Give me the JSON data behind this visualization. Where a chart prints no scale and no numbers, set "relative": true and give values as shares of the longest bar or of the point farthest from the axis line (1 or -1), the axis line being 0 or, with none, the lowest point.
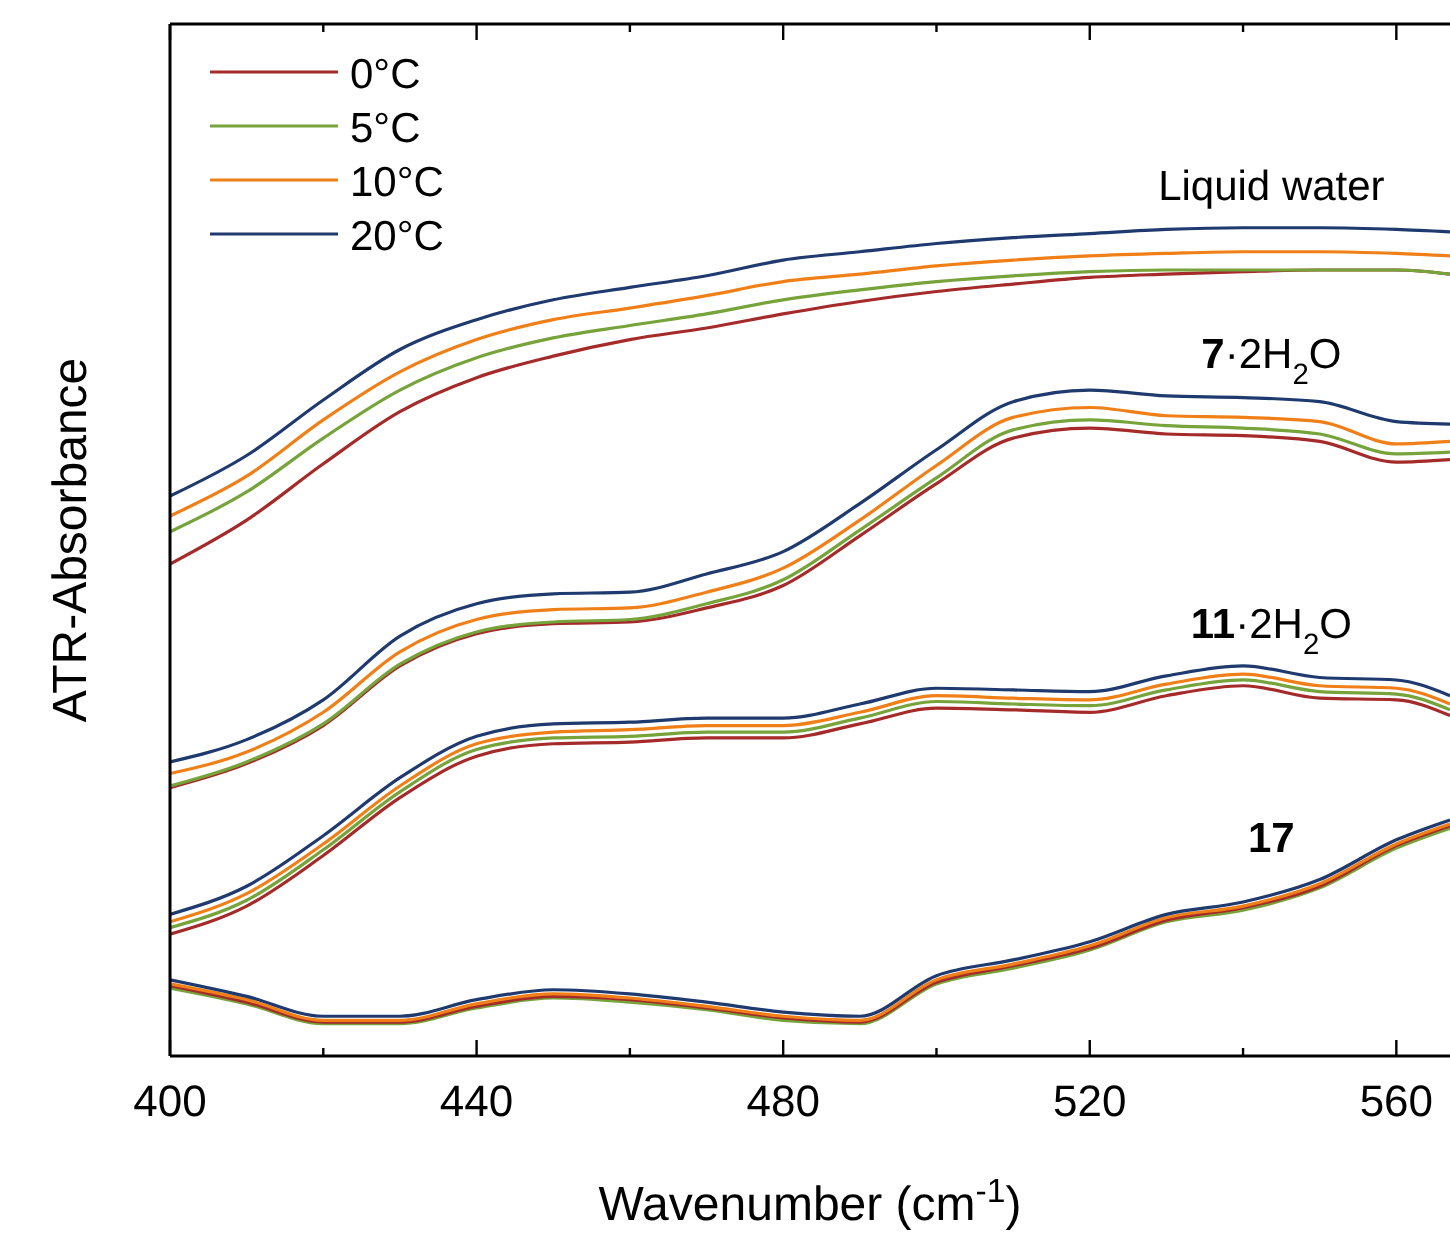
{
  "chart_data": {
    "type": "line",
    "relative": true,
    "xlabel": "Wavenumber (cm$^{-1}$)",
    "ylabel": "ATR-Absorbance",
    "xlim": [
      400,
      567
    ],
    "xticks": [
      400,
      {
        "value": 420,
        "label": null
      },
      440,
      {
        "value": 460,
        "label": null
      },
      480,
      {
        "value": 500,
        "label": null
      },
      520,
      {
        "value": 540,
        "label": null
      },
      560
    ],
    "legend": "top left",
    "x": [
      400,
      410,
      420,
      430,
      440,
      450,
      460,
      470,
      480,
      490,
      500,
      510,
      520,
      530,
      540,
      550,
      560,
      567
    ],
    "annotations": [
      "Liquid water",
      "7·2H$_{2}$O",
      "11·2H$_{2}$O",
      "17"
    ],
    "series": [
      {
        "name": "0°C",
        "color": "#a52a2a",
        "values": [
          0.594,
          0.647,
          0.715,
          0.778,
          0.819,
          0.845,
          0.865,
          0.879,
          0.896,
          0.911,
          0.923,
          0.932,
          0.94,
          0.944,
          0.947,
          0.949,
          0.949,
          0.944
        ]
      },
      {
        "name": "5°C",
        "color": "#77a33b",
        "values": [
          0.633,
          0.681,
          0.746,
          0.804,
          0.843,
          0.867,
          0.882,
          0.896,
          0.913,
          0.925,
          0.935,
          0.942,
          0.947,
          0.949,
          0.949,
          0.949,
          0.949,
          0.944
        ]
      },
      {
        "name": "10°C",
        "color": "#f07f17",
        "values": [
          0.652,
          0.7,
          0.768,
          0.826,
          0.865,
          0.889,
          0.903,
          0.918,
          0.935,
          0.944,
          0.954,
          0.961,
          0.966,
          0.969,
          0.971,
          0.971,
          0.969,
          0.966
        ]
      },
      {
        "name": "20°C",
        "color": "#1f3a6e",
        "values": [
          0.676,
          0.725,
          0.792,
          0.853,
          0.889,
          0.913,
          0.928,
          0.942,
          0.961,
          0.971,
          0.981,
          0.988,
          0.993,
          0.998,
          1,
          1,
          0.998,
          0.995
        ]
      },
      {
        "color": "#a52a2a",
        "values": [
          0.324,
          0.353,
          0.399,
          0.471,
          0.51,
          0.522,
          0.524,
          0.541,
          0.568,
          0.628,
          0.691,
          0.746,
          0.758,
          0.751,
          0.749,
          0.742,
          0.717,
          0.72
        ]
      },
      {
        "color": "#77a33b",
        "values": [
          0.326,
          0.355,
          0.401,
          0.473,
          0.512,
          0.524,
          0.527,
          0.546,
          0.575,
          0.635,
          0.698,
          0.756,
          0.768,
          0.761,
          0.758,
          0.751,
          0.727,
          0.729
        ]
      },
      {
        "color": "#f07f17",
        "values": [
          0.341,
          0.367,
          0.415,
          0.488,
          0.527,
          0.539,
          0.541,
          0.56,
          0.589,
          0.647,
          0.713,
          0.771,
          0.783,
          0.773,
          0.771,
          0.766,
          0.739,
          0.742
        ]
      },
      {
        "color": "#1f3a6e",
        "values": [
          0.355,
          0.382,
          0.43,
          0.507,
          0.546,
          0.558,
          0.56,
          0.582,
          0.609,
          0.667,
          0.732,
          0.79,
          0.804,
          0.797,
          0.795,
          0.79,
          0.766,
          0.763
        ]
      },
      {
        "color": "#a52a2a",
        "values": [
          0.147,
          0.181,
          0.242,
          0.312,
          0.362,
          0.377,
          0.379,
          0.384,
          0.384,
          0.401,
          0.42,
          0.418,
          0.415,
          0.435,
          0.447,
          0.432,
          0.43,
          0.411
        ]
      },
      {
        "color": "#77a33b",
        "values": [
          0.155,
          0.188,
          0.249,
          0.319,
          0.37,
          0.384,
          0.386,
          0.391,
          0.391,
          0.408,
          0.428,
          0.425,
          0.423,
          0.442,
          0.454,
          0.44,
          0.437,
          0.418
        ]
      },
      {
        "color": "#f07f17",
        "values": [
          0.162,
          0.196,
          0.256,
          0.326,
          0.377,
          0.391,
          0.394,
          0.399,
          0.399,
          0.415,
          0.435,
          0.432,
          0.43,
          0.449,
          0.461,
          0.447,
          0.444,
          0.425
        ]
      },
      {
        "color": "#1f3a6e",
        "values": [
          0.171,
          0.205,
          0.266,
          0.336,
          0.386,
          0.401,
          0.403,
          0.408,
          0.408,
          0.425,
          0.444,
          0.442,
          0.44,
          0.459,
          0.471,
          0.457,
          0.454,
          0.435
        ]
      },
      {
        "color": "#77a33b",
        "values": [
          0.082,
          0.063,
          0.039,
          0.039,
          0.058,
          0.07,
          0.065,
          0.056,
          0.043,
          0.039,
          0.087,
          0.106,
          0.128,
          0.162,
          0.176,
          0.203,
          0.251,
          0.275
        ]
      },
      {
        "color": "#a52a2a",
        "values": [
          0.085,
          0.065,
          0.041,
          0.041,
          0.06,
          0.072,
          0.068,
          0.058,
          0.046,
          0.041,
          0.089,
          0.109,
          0.13,
          0.164,
          0.179,
          0.205,
          0.254,
          0.278
        ]
      },
      {
        "color": "#f07f17",
        "values": [
          0.087,
          0.068,
          0.043,
          0.043,
          0.063,
          0.075,
          0.07,
          0.06,
          0.048,
          0.043,
          0.092,
          0.111,
          0.133,
          0.167,
          0.181,
          0.208,
          0.256,
          0.28
        ]
      },
      {
        "color": "#1f3a6e",
        "values": [
          0.092,
          0.072,
          0.048,
          0.048,
          0.068,
          0.08,
          0.075,
          0.065,
          0.053,
          0.048,
          0.097,
          0.116,
          0.138,
          0.171,
          0.186,
          0.213,
          0.261,
          0.285
        ]
      }
    ]
  }
}
